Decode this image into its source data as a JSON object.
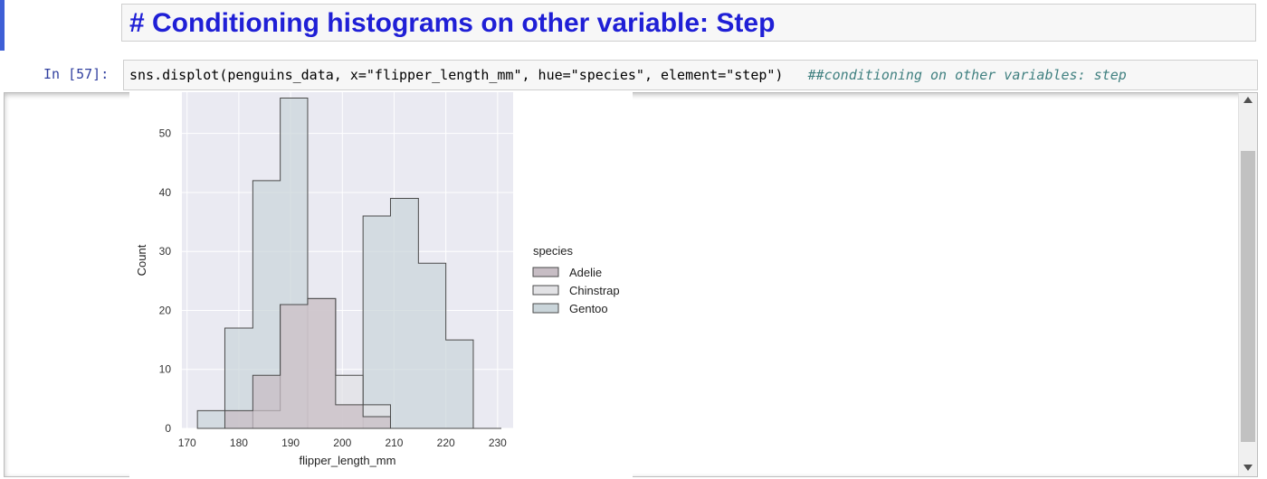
{
  "markdown_cell": {
    "text": "# Conditioning histograms on other variable: Step"
  },
  "code_cell": {
    "prompt": "In [57]:",
    "code": "sns.displot(penguins_data, x=\"flipper_length_mm\", hue=\"species\", element=\"step\")",
    "comment": "##conditioning on other variables: step"
  },
  "colors": {
    "plot_background": "#eaeaf2",
    "gentoo_fill": "#cad5da",
    "adelie_fill": "#c7bdc4",
    "chinstrap_fill": "#e2e2e5"
  },
  "chart_data": {
    "type": "histogram-step",
    "xlabel": "flipper_length_mm",
    "ylabel": "Count",
    "xlim": [
      169,
      233
    ],
    "ylim": [
      0,
      57
    ],
    "xticks": [
      170,
      180,
      190,
      200,
      210,
      220,
      230
    ],
    "yticks": [
      0,
      10,
      20,
      30,
      40,
      50
    ],
    "grid": true,
    "bin_edges": [
      172,
      177.3,
      182.7,
      188,
      193.3,
      198.7,
      204,
      209.3,
      214.7,
      220,
      225.3,
      230.7
    ],
    "series": [
      {
        "name": "Adelie",
        "color": "#c7bdc4",
        "values": [
          0,
          3,
          9,
          21,
          22,
          4,
          2,
          0,
          0,
          0,
          0
        ]
      },
      {
        "name": "Chinstrap",
        "color": "#e2e2e5",
        "values": [
          0,
          0,
          3,
          21,
          22,
          9,
          4,
          0,
          0,
          0,
          0
        ]
      },
      {
        "name": "Gentoo",
        "color": "#cad5da",
        "values": [
          3,
          17,
          42,
          56,
          0,
          0,
          36,
          39,
          28,
          15,
          0
        ]
      }
    ],
    "legend": {
      "title": "species",
      "position": "right",
      "entries": [
        "Adelie",
        "Chinstrap",
        "Gentoo"
      ]
    }
  }
}
